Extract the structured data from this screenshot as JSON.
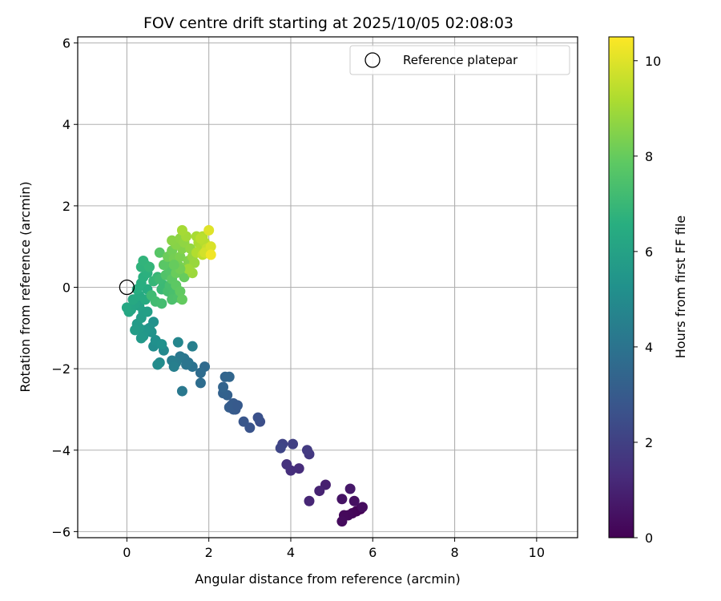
{
  "chart_data": {
    "type": "scatter",
    "title": "FOV centre drift starting at 2025/10/05 02:08:03",
    "xlabel": "Angular distance from reference (arcmin)",
    "ylabel": "Rotation from reference (arcmin)",
    "xlim": [
      -1.2,
      11.0
    ],
    "ylim": [
      -6.15,
      6.15
    ],
    "xticks": [
      0,
      2,
      4,
      6,
      8,
      10
    ],
    "yticks": [
      -6,
      -4,
      -2,
      0,
      2,
      4,
      6
    ],
    "grid": true,
    "legend": {
      "position": "top-right",
      "entries": [
        "Reference platepar"
      ]
    },
    "reference_point": {
      "name": "Reference platepar",
      "x": 0,
      "y": 0,
      "marker": "open-circle"
    },
    "colorbar": {
      "label": "Hours from first FF file",
      "colormap": "viridis",
      "range": [
        0,
        10.5
      ],
      "ticks": [
        0,
        2,
        4,
        6,
        8,
        10
      ]
    },
    "points": [
      {
        "x": 5.7,
        "y": -5.45,
        "c": 0.0
      },
      {
        "x": 5.6,
        "y": -5.5,
        "c": 0.1
      },
      {
        "x": 5.5,
        "y": -5.55,
        "c": 0.15
      },
      {
        "x": 5.4,
        "y": -5.6,
        "c": 0.2
      },
      {
        "x": 5.3,
        "y": -5.6,
        "c": 0.25
      },
      {
        "x": 5.25,
        "y": -5.75,
        "c": 0.3
      },
      {
        "x": 5.75,
        "y": -5.4,
        "c": 0.35
      },
      {
        "x": 5.55,
        "y": -5.25,
        "c": 0.45
      },
      {
        "x": 5.25,
        "y": -5.2,
        "c": 0.55
      },
      {
        "x": 5.45,
        "y": -4.95,
        "c": 0.7
      },
      {
        "x": 4.85,
        "y": -4.85,
        "c": 0.9
      },
      {
        "x": 4.7,
        "y": -5.0,
        "c": 1.0
      },
      {
        "x": 4.45,
        "y": -5.25,
        "c": 1.1
      },
      {
        "x": 4.2,
        "y": -4.45,
        "c": 1.3
      },
      {
        "x": 4.0,
        "y": -4.5,
        "c": 1.4
      },
      {
        "x": 3.9,
        "y": -4.35,
        "c": 1.5
      },
      {
        "x": 4.45,
        "y": -4.1,
        "c": 1.7
      },
      {
        "x": 4.4,
        "y": -4.0,
        "c": 1.8
      },
      {
        "x": 4.05,
        "y": -3.85,
        "c": 2.0
      },
      {
        "x": 3.8,
        "y": -3.85,
        "c": 2.1
      },
      {
        "x": 3.75,
        "y": -3.95,
        "c": 2.2
      },
      {
        "x": 3.25,
        "y": -3.3,
        "c": 2.5
      },
      {
        "x": 3.2,
        "y": -3.2,
        "c": 2.6
      },
      {
        "x": 3.0,
        "y": -3.45,
        "c": 2.7
      },
      {
        "x": 2.85,
        "y": -3.3,
        "c": 2.8
      },
      {
        "x": 2.65,
        "y": -3.0,
        "c": 2.9
      },
      {
        "x": 2.6,
        "y": -2.85,
        "c": 3.0
      },
      {
        "x": 2.5,
        "y": -2.95,
        "c": 3.1
      },
      {
        "x": 2.45,
        "y": -2.65,
        "c": 3.2
      },
      {
        "x": 2.35,
        "y": -2.6,
        "c": 3.3
      },
      {
        "x": 2.35,
        "y": -2.45,
        "c": 3.35
      },
      {
        "x": 2.4,
        "y": -2.2,
        "c": 3.4
      },
      {
        "x": 2.5,
        "y": -2.2,
        "c": 3.45
      },
      {
        "x": 2.6,
        "y": -3.0,
        "c": 3.0
      },
      {
        "x": 2.55,
        "y": -2.9,
        "c": 3.05
      },
      {
        "x": 2.7,
        "y": -2.9,
        "c": 2.95
      },
      {
        "x": 1.9,
        "y": -1.95,
        "c": 3.6
      },
      {
        "x": 1.8,
        "y": -2.1,
        "c": 3.7
      },
      {
        "x": 1.8,
        "y": -2.35,
        "c": 3.75
      },
      {
        "x": 1.6,
        "y": -1.95,
        "c": 3.9
      },
      {
        "x": 1.5,
        "y": -1.85,
        "c": 4.0
      },
      {
        "x": 1.4,
        "y": -1.75,
        "c": 4.1
      },
      {
        "x": 1.3,
        "y": -1.7,
        "c": 4.2
      },
      {
        "x": 1.2,
        "y": -1.85,
        "c": 4.3
      },
      {
        "x": 1.1,
        "y": -1.8,
        "c": 4.4
      },
      {
        "x": 1.15,
        "y": -1.95,
        "c": 4.5
      },
      {
        "x": 1.6,
        "y": -1.45,
        "c": 4.5
      },
      {
        "x": 1.35,
        "y": -2.55,
        "c": 4.2
      },
      {
        "x": 1.45,
        "y": -1.9,
        "c": 4.05
      },
      {
        "x": 1.25,
        "y": -1.35,
        "c": 4.8
      },
      {
        "x": 0.9,
        "y": -1.55,
        "c": 4.9
      },
      {
        "x": 0.8,
        "y": -1.85,
        "c": 5.0
      },
      {
        "x": 0.75,
        "y": -1.9,
        "c": 5.05
      },
      {
        "x": 0.65,
        "y": -1.45,
        "c": 5.1
      },
      {
        "x": 0.7,
        "y": -1.3,
        "c": 5.2
      },
      {
        "x": 0.85,
        "y": -1.4,
        "c": 5.25
      },
      {
        "x": 0.65,
        "y": -0.85,
        "c": 5.3
      },
      {
        "x": 0.6,
        "y": -1.1,
        "c": 5.35
      },
      {
        "x": 0.55,
        "y": -1.0,
        "c": 5.4
      },
      {
        "x": 0.45,
        "y": -1.05,
        "c": 5.5
      },
      {
        "x": 0.4,
        "y": -1.2,
        "c": 5.55
      },
      {
        "x": 0.35,
        "y": -1.25,
        "c": 5.6
      },
      {
        "x": 0.3,
        "y": -1.0,
        "c": 5.65
      },
      {
        "x": 0.25,
        "y": -0.9,
        "c": 5.7
      },
      {
        "x": 0.2,
        "y": -1.05,
        "c": 5.75
      },
      {
        "x": 0.35,
        "y": -0.75,
        "c": 5.8
      },
      {
        "x": 0.4,
        "y": -0.6,
        "c": 5.85
      },
      {
        "x": 0.5,
        "y": -0.6,
        "c": 5.9
      },
      {
        "x": 0.3,
        "y": -0.45,
        "c": 6.0
      },
      {
        "x": 0.2,
        "y": -0.4,
        "c": 6.1
      },
      {
        "x": 0.1,
        "y": -0.55,
        "c": 6.15
      },
      {
        "x": 0.05,
        "y": -0.6,
        "c": 6.2
      },
      {
        "x": 0.0,
        "y": -0.5,
        "c": 6.25
      },
      {
        "x": 0.15,
        "y": -0.3,
        "c": 6.3
      },
      {
        "x": 0.3,
        "y": -0.2,
        "c": 6.35
      },
      {
        "x": 0.45,
        "y": -0.3,
        "c": 6.4
      },
      {
        "x": 0.5,
        "y": -0.05,
        "c": 6.45
      },
      {
        "x": 0.25,
        "y": -0.05,
        "c": 6.5
      },
      {
        "x": 0.35,
        "y": 0.1,
        "c": 6.55
      },
      {
        "x": 0.4,
        "y": 0.25,
        "c": 6.6
      },
      {
        "x": 0.5,
        "y": 0.35,
        "c": 6.65
      },
      {
        "x": 0.45,
        "y": 0.55,
        "c": 6.7
      },
      {
        "x": 0.35,
        "y": 0.5,
        "c": 6.75
      },
      {
        "x": 0.4,
        "y": 0.65,
        "c": 6.8
      },
      {
        "x": 0.55,
        "y": 0.5,
        "c": 6.85
      },
      {
        "x": 0.65,
        "y": 0.15,
        "c": 6.9
      },
      {
        "x": 0.75,
        "y": 0.25,
        "c": 6.95
      },
      {
        "x": 0.85,
        "y": -0.05,
        "c": 7.0
      },
      {
        "x": 0.9,
        "y": 0.05,
        "c": 7.05
      },
      {
        "x": 0.8,
        "y": 0.2,
        "c": 7.1
      },
      {
        "x": 0.6,
        "y": -0.2,
        "c": 7.15
      },
      {
        "x": 0.7,
        "y": -0.35,
        "c": 7.2
      },
      {
        "x": 0.85,
        "y": -0.4,
        "c": 7.25
      },
      {
        "x": 1.0,
        "y": -0.1,
        "c": 7.3
      },
      {
        "x": 1.05,
        "y": 0.05,
        "c": 7.35
      },
      {
        "x": 1.15,
        "y": -0.15,
        "c": 7.4
      },
      {
        "x": 1.1,
        "y": -0.3,
        "c": 7.45
      },
      {
        "x": 1.25,
        "y": -0.25,
        "c": 7.5
      },
      {
        "x": 0.95,
        "y": 0.3,
        "c": 7.55
      },
      {
        "x": 1.05,
        "y": 0.4,
        "c": 7.6
      },
      {
        "x": 1.0,
        "y": 0.6,
        "c": 7.65
      },
      {
        "x": 0.8,
        "y": 0.85,
        "c": 7.7
      },
      {
        "x": 0.9,
        "y": 0.55,
        "c": 7.75
      },
      {
        "x": 1.1,
        "y": 0.2,
        "c": 7.8
      },
      {
        "x": 1.2,
        "y": 0.05,
        "c": 7.85
      },
      {
        "x": 1.3,
        "y": -0.1,
        "c": 7.9
      },
      {
        "x": 1.35,
        "y": -0.3,
        "c": 7.95
      },
      {
        "x": 1.4,
        "y": 0.25,
        "c": 8.0
      },
      {
        "x": 1.2,
        "y": 0.35,
        "c": 8.05
      },
      {
        "x": 1.0,
        "y": 0.75,
        "c": 8.1
      },
      {
        "x": 1.1,
        "y": 0.9,
        "c": 8.2
      },
      {
        "x": 1.15,
        "y": 0.7,
        "c": 8.25
      },
      {
        "x": 1.25,
        "y": 0.55,
        "c": 8.3
      },
      {
        "x": 1.3,
        "y": 0.75,
        "c": 8.35
      },
      {
        "x": 1.45,
        "y": 0.5,
        "c": 8.4
      },
      {
        "x": 1.5,
        "y": 0.65,
        "c": 8.45
      },
      {
        "x": 1.35,
        "y": 0.95,
        "c": 8.5
      },
      {
        "x": 1.2,
        "y": 1.05,
        "c": 8.55
      },
      {
        "x": 1.1,
        "y": 1.15,
        "c": 8.6
      },
      {
        "x": 1.3,
        "y": 1.2,
        "c": 8.65
      },
      {
        "x": 1.4,
        "y": 1.1,
        "c": 8.7
      },
      {
        "x": 1.55,
        "y": 0.95,
        "c": 8.75
      },
      {
        "x": 1.6,
        "y": 0.75,
        "c": 8.8
      },
      {
        "x": 1.65,
        "y": 0.6,
        "c": 8.85
      },
      {
        "x": 1.6,
        "y": 0.35,
        "c": 8.9
      },
      {
        "x": 1.5,
        "y": 0.45,
        "c": 8.95
      },
      {
        "x": 1.45,
        "y": 1.25,
        "c": 9.0
      },
      {
        "x": 1.35,
        "y": 1.4,
        "c": 9.05
      },
      {
        "x": 1.7,
        "y": 1.25,
        "c": 9.1
      },
      {
        "x": 1.75,
        "y": 1.1,
        "c": 9.15
      },
      {
        "x": 1.8,
        "y": 0.95,
        "c": 9.2
      },
      {
        "x": 1.7,
        "y": 0.85,
        "c": 9.25
      },
      {
        "x": 1.85,
        "y": 1.25,
        "c": 9.3
      },
      {
        "x": 1.9,
        "y": 1.1,
        "c": 9.35
      },
      {
        "x": 1.8,
        "y": 1.2,
        "c": 9.4
      },
      {
        "x": 1.85,
        "y": 0.8,
        "c": 9.5
      },
      {
        "x": 1.95,
        "y": 0.95,
        "c": 9.6
      },
      {
        "x": 2.0,
        "y": 0.9,
        "c": 9.7
      },
      {
        "x": 1.9,
        "y": 0.85,
        "c": 9.8
      },
      {
        "x": 2.05,
        "y": 1.0,
        "c": 9.9
      },
      {
        "x": 2.0,
        "y": 1.4,
        "c": 10.0
      },
      {
        "x": 2.05,
        "y": 0.8,
        "c": 10.3
      },
      {
        "x": 1.3,
        "y": 0.45,
        "c": 8.2
      },
      {
        "x": 1.15,
        "y": 0.55,
        "c": 8.0
      }
    ]
  }
}
